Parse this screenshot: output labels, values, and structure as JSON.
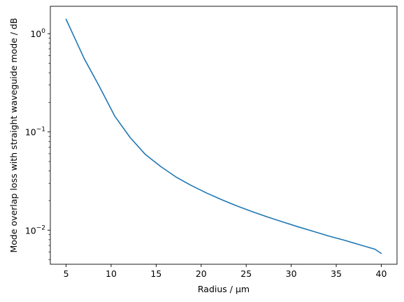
{
  "chart_data": {
    "type": "line",
    "title": "",
    "xlabel": "Radius / µm",
    "ylabel": "Mode overlap loss with straight waveguide mode / dB",
    "xscale": "linear",
    "yscale": "log",
    "xlim": [
      3.25,
      41.75
    ],
    "ylim": [
      0.0045,
      1.9
    ],
    "grid": false,
    "legend": "none",
    "xticks": [
      5,
      10,
      15,
      20,
      25,
      30,
      35,
      40
    ],
    "xtick_labels": [
      "5",
      "10",
      "15",
      "20",
      "25",
      "30",
      "35",
      "40"
    ],
    "yticks": [
      0.01,
      0.1,
      1
    ],
    "ytick_labels": [
      "10",
      "10",
      "10"
    ],
    "ytick_exponents": [
      "−2",
      "−1",
      "0"
    ],
    "minor_yticks": [
      0.005,
      0.006,
      0.007,
      0.008,
      0.009,
      0.02,
      0.03,
      0.04,
      0.05,
      0.06,
      0.07,
      0.08,
      0.09,
      0.2,
      0.3,
      0.4,
      0.5,
      0.6,
      0.7,
      0.8,
      0.9
    ],
    "series": [
      {
        "color": "#1f77b4",
        "x": [
          5,
          5.85,
          7.0,
          8.7,
          10.4,
          12.1,
          13.8,
          15.5,
          17.2,
          18.9,
          20.6,
          22.3,
          24.0,
          25.7,
          27.4,
          29.1,
          30.8,
          32.5,
          34.2,
          35.9,
          37.6,
          39.3,
          40
        ],
        "y": [
          1.4,
          0.95,
          0.56,
          0.29,
          0.145,
          0.088,
          0.059,
          0.0445,
          0.0348,
          0.0285,
          0.0239,
          0.0204,
          0.0176,
          0.0154,
          0.0136,
          0.0121,
          0.0108,
          0.0097,
          0.0087,
          0.0079,
          0.0071,
          0.0064,
          0.0058
        ]
      }
    ]
  },
  "colors": {
    "axes": "#000000",
    "line": "#1f77b4",
    "background": "#ffffff"
  }
}
